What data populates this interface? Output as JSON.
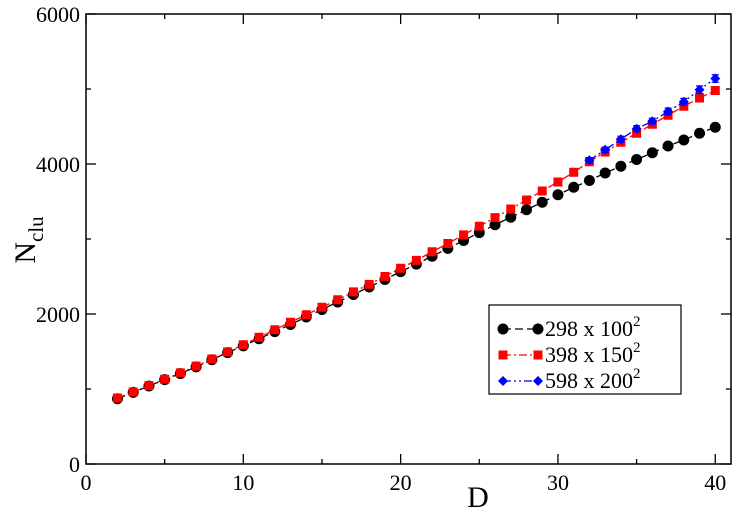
{
  "chart_data": {
    "type": "line",
    "xlabel": "D",
    "ylabel_main": "N",
    "ylabel_sub": "clu",
    "xlim": [
      0,
      41
    ],
    "ylim": [
      0,
      6000
    ],
    "x_ticks": [
      0,
      10,
      20,
      30,
      40
    ],
    "x_tick_labels": [
      "0",
      "10",
      "20",
      "30",
      "40"
    ],
    "y_ticks": [
      0,
      2000,
      4000,
      6000
    ],
    "y_tick_labels": [
      "0",
      "2000",
      "4000",
      "6000"
    ],
    "grid": false,
    "legend_position": "lower-right",
    "series": [
      {
        "name": "298 x 100",
        "name_sup": "2",
        "color": "#000000",
        "marker": "circle",
        "dash": "8,4",
        "x": [
          2,
          3,
          4,
          5,
          6,
          7,
          8,
          9,
          10,
          11,
          12,
          13,
          14,
          15,
          16,
          17,
          18,
          19,
          20,
          21,
          22,
          23,
          24,
          25,
          26,
          27,
          28,
          29,
          30,
          31,
          32,
          33,
          34,
          35,
          36,
          37,
          38,
          39,
          40
        ],
        "y": [
          870,
          955,
          1040,
          1125,
          1205,
          1295,
          1390,
          1485,
          1575,
          1670,
          1765,
          1860,
          1960,
          2060,
          2160,
          2260,
          2360,
          2460,
          2565,
          2665,
          2770,
          2875,
          2980,
          3085,
          3190,
          3290,
          3390,
          3490,
          3590,
          3690,
          3780,
          3880,
          3970,
          4060,
          4150,
          4240,
          4320,
          4410,
          4490
        ],
        "err": [
          20,
          20,
          20,
          20,
          20,
          20,
          20,
          20,
          20,
          20,
          20,
          20,
          20,
          20,
          20,
          20,
          20,
          20,
          20,
          20,
          20,
          20,
          20,
          20,
          20,
          20,
          20,
          20,
          20,
          20,
          20,
          20,
          20,
          20,
          20,
          20,
          20,
          20,
          20
        ]
      },
      {
        "name": "398 x 150",
        "name_sup": "2",
        "color": "#ff0000",
        "marker": "square",
        "dash": "8,3,2,3",
        "x": [
          2,
          3,
          4,
          5,
          6,
          7,
          8,
          9,
          10,
          11,
          12,
          13,
          14,
          15,
          16,
          17,
          18,
          19,
          20,
          21,
          22,
          23,
          24,
          25,
          26,
          27,
          28,
          29,
          30,
          31,
          32,
          33,
          34,
          35,
          36,
          37,
          38,
          39,
          40
        ],
        "y": [
          880,
          960,
          1045,
          1130,
          1215,
          1305,
          1400,
          1495,
          1590,
          1690,
          1790,
          1890,
          1990,
          2090,
          2190,
          2295,
          2395,
          2500,
          2610,
          2715,
          2830,
          2940,
          3055,
          3170,
          3285,
          3400,
          3520,
          3640,
          3760,
          3890,
          4030,
          4160,
          4290,
          4410,
          4530,
          4650,
          4770,
          4880,
          4980
        ],
        "err": [
          20,
          20,
          20,
          20,
          20,
          20,
          20,
          20,
          20,
          20,
          20,
          20,
          20,
          20,
          20,
          20,
          20,
          20,
          20,
          20,
          20,
          20,
          20,
          20,
          20,
          20,
          20,
          20,
          20,
          20,
          25,
          25,
          25,
          25,
          25,
          25,
          30,
          30,
          30
        ]
      },
      {
        "name": "598 x 200",
        "name_sup": "2",
        "color": "#0000ff",
        "marker": "diamond",
        "dash": "8,3,2,3,2,3",
        "x": [
          32,
          33,
          34,
          35,
          36,
          37,
          38,
          39,
          40
        ],
        "y": [
          4050,
          4190,
          4330,
          4470,
          4570,
          4700,
          4830,
          4990,
          5140
        ],
        "err": [
          35,
          35,
          40,
          40,
          40,
          45,
          45,
          50,
          50
        ]
      }
    ]
  }
}
